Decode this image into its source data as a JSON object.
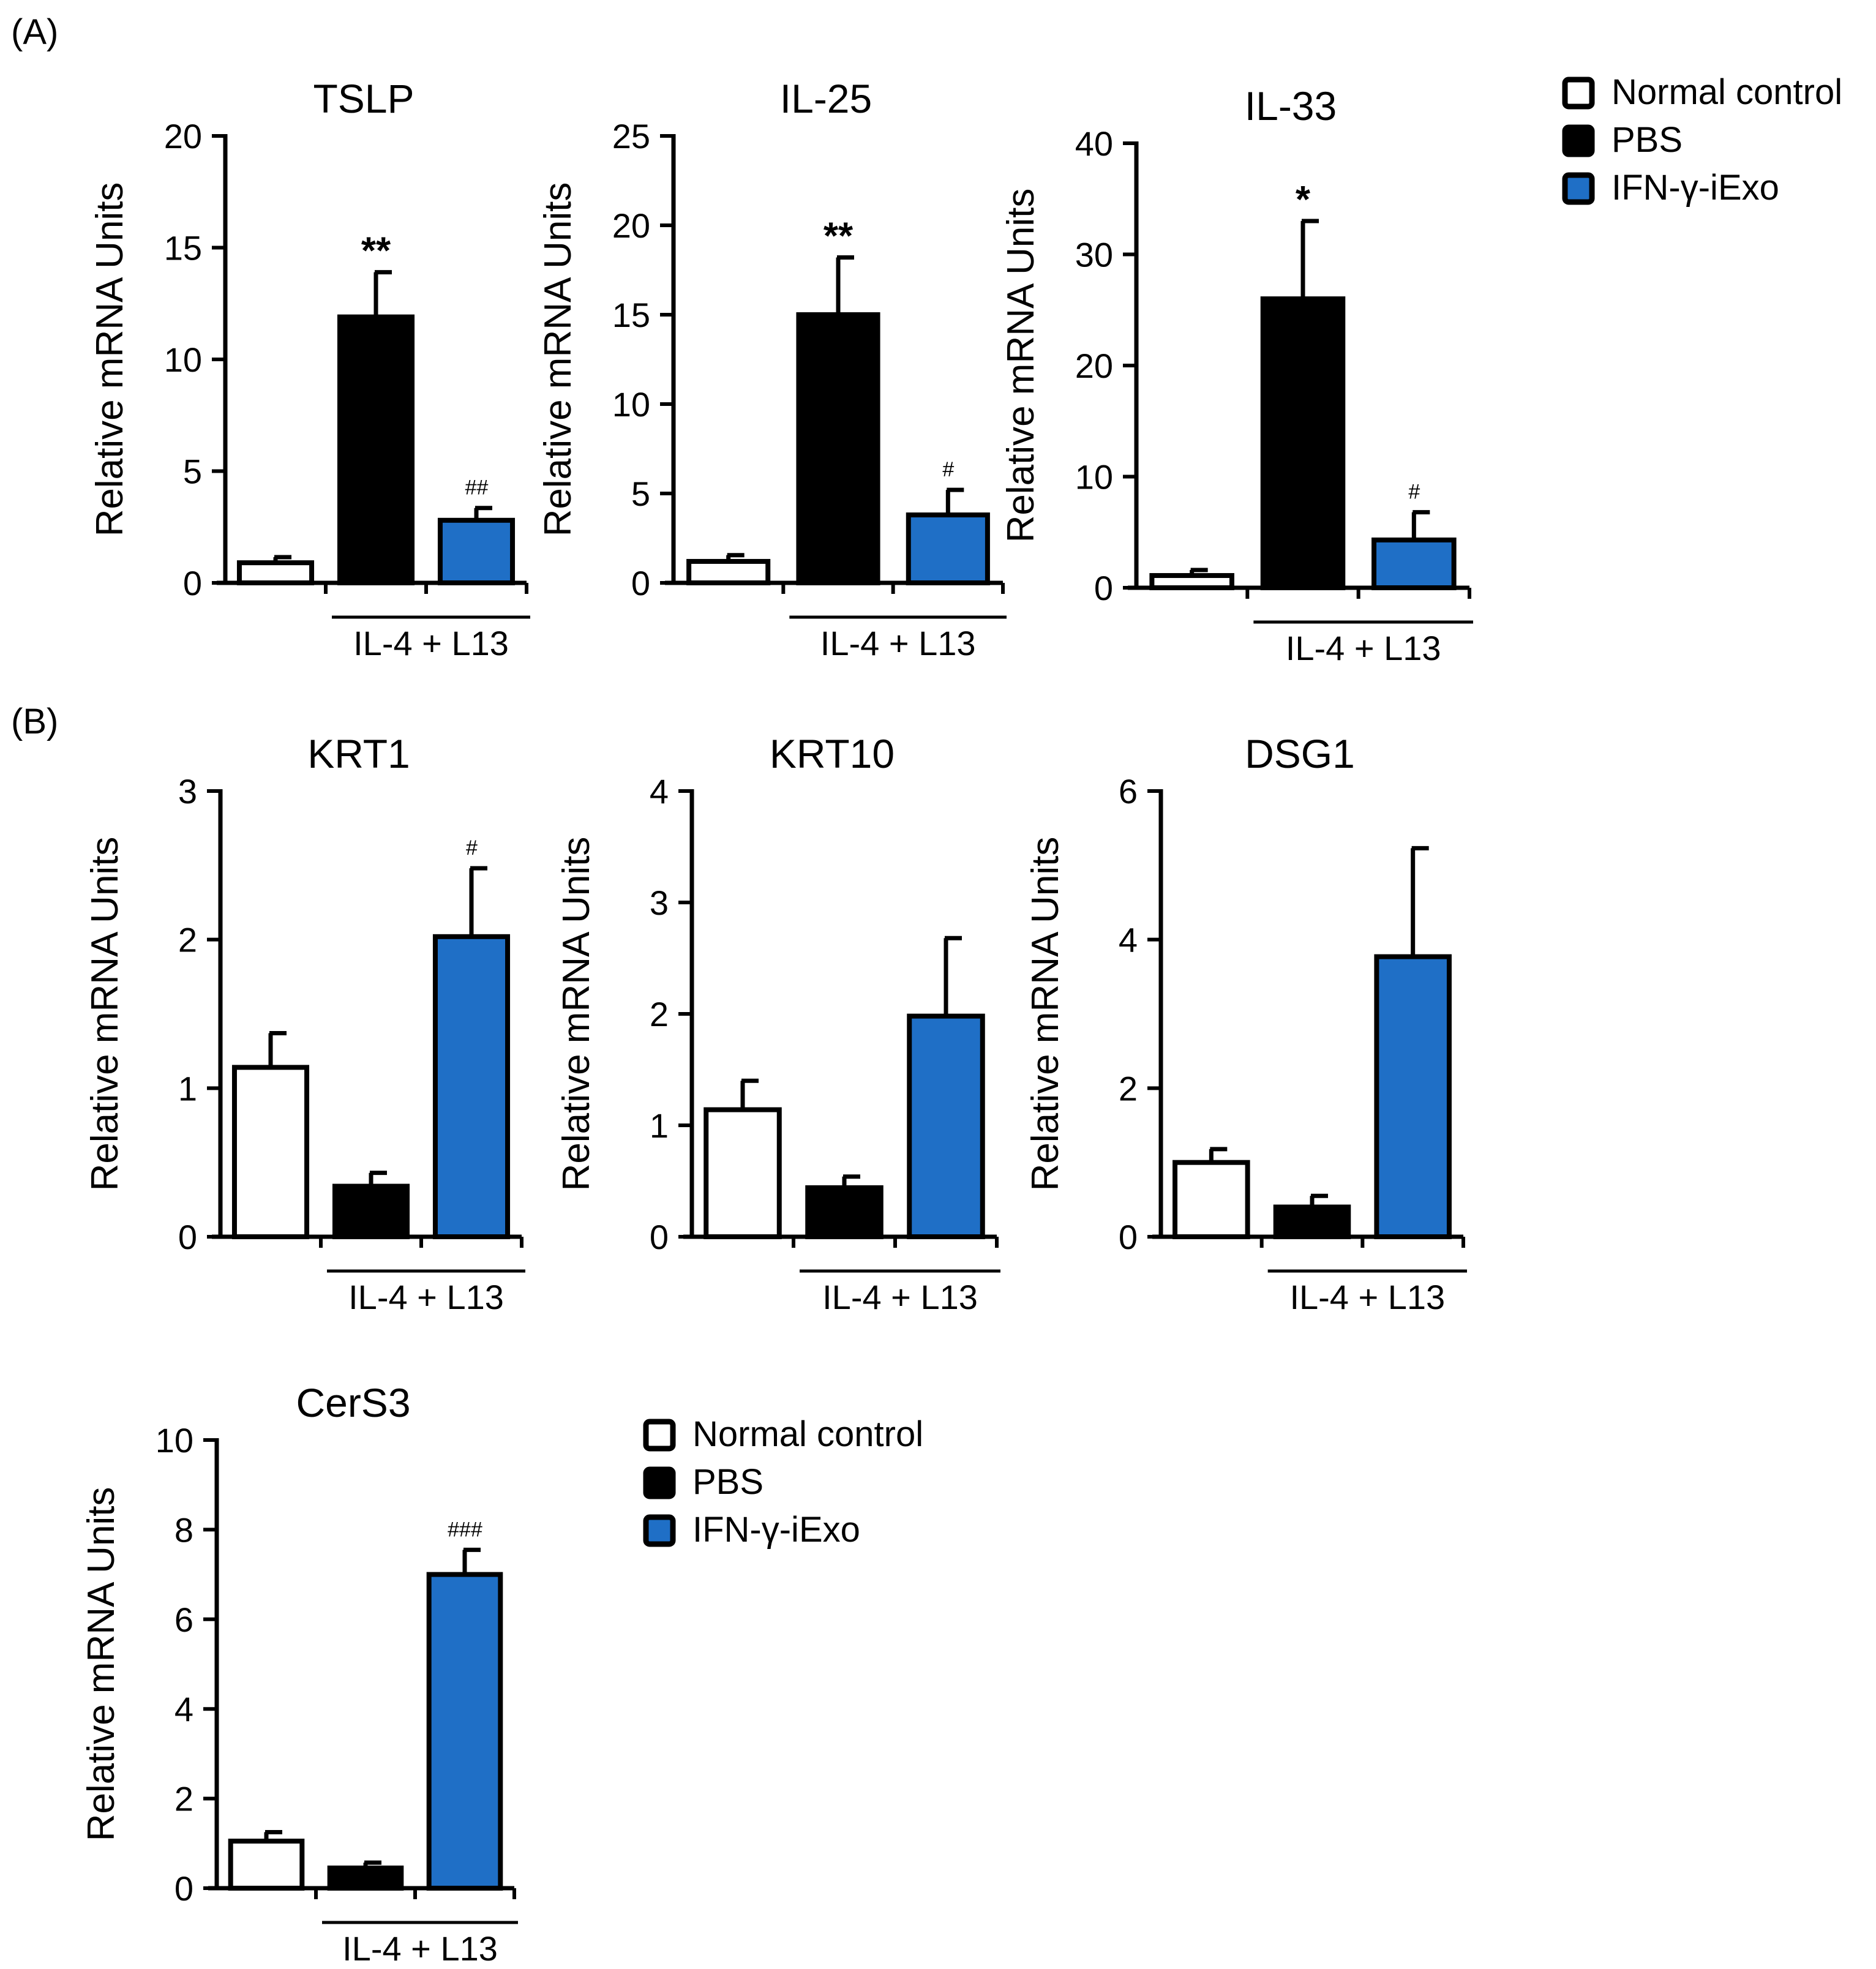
{
  "panels": {
    "a_label": "(A)",
    "b_label": "(B)"
  },
  "colors": {
    "normal_control": "#ffffff",
    "pbs": "#000000",
    "ifn": "#1f6fc6",
    "axis": "#000000"
  },
  "legends": [
    {
      "entries": [
        {
          "label": "Normal control",
          "color_key": "normal_control"
        },
        {
          "label": "PBS",
          "color_key": "pbs"
        },
        {
          "label": "IFN-γ-iExo",
          "color_key": "ifn"
        }
      ]
    },
    {
      "entries": [
        {
          "label": "Normal control",
          "color_key": "normal_control"
        },
        {
          "label": "PBS",
          "color_key": "pbs"
        },
        {
          "label": "IFN-γ-iExo",
          "color_key": "ifn"
        }
      ]
    }
  ],
  "chart_data": [
    {
      "type": "bar",
      "title": "TSLP",
      "ylabel": "Relative mRNA Units",
      "group_label": "IL-4 + L13",
      "ylim": [
        0,
        20
      ],
      "yticks": [
        0,
        5,
        10,
        15,
        20
      ],
      "categories": [
        "Normal control",
        "PBS",
        "IFN-γ-iExo"
      ],
      "values": [
        0.9,
        11.9,
        2.8
      ],
      "errors": [
        0.25,
        2.0,
        0.55
      ],
      "annotations": [
        "",
        "**",
        "##"
      ]
    },
    {
      "type": "bar",
      "title": "IL-25",
      "ylabel": "Relative mRNA Units",
      "group_label": "IL-4 + L13",
      "ylim": [
        0,
        25
      ],
      "yticks": [
        0,
        5,
        10,
        15,
        20,
        25
      ],
      "categories": [
        "Normal control",
        "PBS",
        "IFN-γ-iExo"
      ],
      "values": [
        1.2,
        15.0,
        3.8
      ],
      "errors": [
        0.35,
        3.2,
        1.4
      ],
      "annotations": [
        "",
        "**",
        "#"
      ]
    },
    {
      "type": "bar",
      "title": "IL-33",
      "ylabel": "Relative mRNA Units",
      "group_label": "IL-4 + L13",
      "ylim": [
        0,
        40
      ],
      "yticks": [
        0,
        10,
        20,
        30,
        40
      ],
      "categories": [
        "Normal control",
        "PBS",
        "IFN-γ-iExo"
      ],
      "values": [
        1.1,
        26.0,
        4.3
      ],
      "errors": [
        0.5,
        7.0,
        2.5
      ],
      "annotations": [
        "",
        "*",
        "#"
      ]
    },
    {
      "type": "bar",
      "title": "KRT1",
      "ylabel": "Relative mRNA Units",
      "group_label": "IL-4 + L13",
      "ylim": [
        0,
        3
      ],
      "yticks": [
        0,
        1,
        2,
        3
      ],
      "categories": [
        "Normal control",
        "PBS",
        "IFN-γ-iExo"
      ],
      "values": [
        1.14,
        0.34,
        2.02
      ],
      "errors": [
        0.23,
        0.09,
        0.46
      ],
      "annotations": [
        "",
        "",
        "#"
      ]
    },
    {
      "type": "bar",
      "title": "KRT10",
      "ylabel": "Relative mRNA Units",
      "group_label": "IL-4 + L13",
      "ylim": [
        0,
        4
      ],
      "yticks": [
        0,
        1,
        2,
        3,
        4
      ],
      "categories": [
        "Normal control",
        "PBS",
        "IFN-γ-iExo"
      ],
      "values": [
        1.14,
        0.44,
        1.98
      ],
      "errors": [
        0.26,
        0.1,
        0.7
      ],
      "annotations": [
        "",
        "",
        ""
      ]
    },
    {
      "type": "bar",
      "title": "DSG1",
      "ylabel": "Relative mRNA Units",
      "group_label": "IL-4 + L13",
      "ylim": [
        0,
        6
      ],
      "yticks": [
        0,
        2,
        4,
        6
      ],
      "categories": [
        "Normal control",
        "PBS",
        "IFN-γ-iExo"
      ],
      "values": [
        1.0,
        0.4,
        3.77
      ],
      "errors": [
        0.18,
        0.15,
        1.46
      ],
      "annotations": [
        "",
        "",
        ""
      ]
    },
    {
      "type": "bar",
      "title": "CerS3",
      "ylabel": "Relative mRNA Units",
      "group_label": "IL-4 + L13",
      "ylim": [
        0,
        10
      ],
      "yticks": [
        0,
        2,
        4,
        6,
        8,
        10
      ],
      "categories": [
        "Normal control",
        "PBS",
        "IFN-γ-iExo"
      ],
      "values": [
        1.05,
        0.45,
        7.0
      ],
      "errors": [
        0.2,
        0.12,
        0.55
      ],
      "annotations": [
        "",
        "",
        "###"
      ]
    }
  ]
}
